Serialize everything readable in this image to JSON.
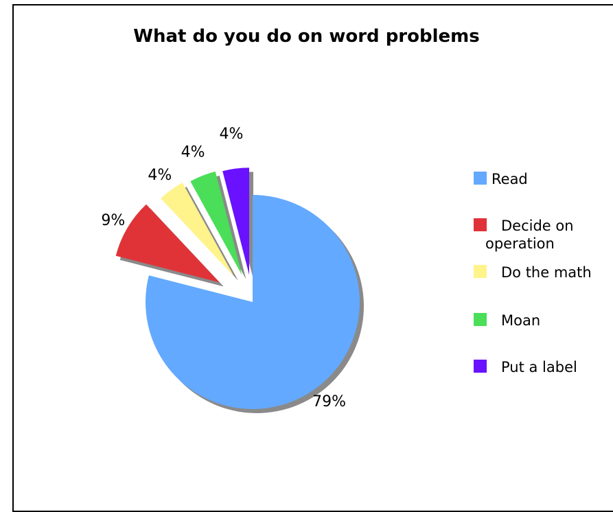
{
  "chart_data": {
    "type": "pie",
    "title": "What do you do on word problems",
    "categories": [
      "Read",
      "Decide on operation",
      "Do the math",
      "Moan",
      "Put a label"
    ],
    "values": [
      79,
      9,
      4,
      4,
      4
    ],
    "labels": [
      "79%",
      "9%",
      "4%",
      "4%",
      "4%"
    ],
    "colors": [
      "#63A9FF",
      "#E03338",
      "#FFF38C",
      "#4ADE59",
      "#6A11FF"
    ],
    "legend": {
      "position": "right",
      "items": [
        {
          "label": "Read"
        },
        {
          "line1": "Decide on",
          "line2": "operation"
        },
        {
          "label": "Do the math"
        },
        {
          "label": "Moan"
        },
        {
          "label": "Put a label"
        }
      ]
    }
  }
}
